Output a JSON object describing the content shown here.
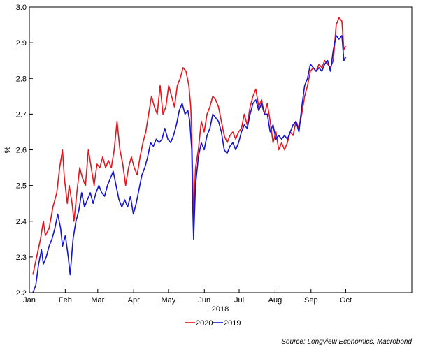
{
  "chart_data": {
    "type": "line",
    "xlabel": "2018",
    "ylabel": "%",
    "ylim": [
      2.2,
      3.0
    ],
    "yticks": [
      "2.2",
      "2.3",
      "2.4",
      "2.5",
      "2.6",
      "2.7",
      "2.8",
      "2.9",
      "3.0"
    ],
    "xticks": [
      "Jan",
      "Feb",
      "Mar",
      "Apr",
      "May",
      "Jun",
      "Jul",
      "Aug",
      "Sep",
      "Oct"
    ],
    "grid": false,
    "legend_position": "bottom-center",
    "source": "Source: Longview Economics, Macrobond",
    "colors": {
      "2020": "#e8141c",
      "2019": "#1414d6"
    },
    "series": [
      {
        "name": "2020",
        "points": [
          [
            0,
            2.25
          ],
          [
            4,
            2.3
          ],
          [
            8,
            2.35
          ],
          [
            11,
            2.4
          ],
          [
            13,
            2.36
          ],
          [
            17,
            2.38
          ],
          [
            21,
            2.44
          ],
          [
            25,
            2.48
          ],
          [
            28,
            2.55
          ],
          [
            31,
            2.6
          ],
          [
            33,
            2.52
          ],
          [
            36,
            2.45
          ],
          [
            38,
            2.5
          ],
          [
            41,
            2.45
          ],
          [
            43,
            2.4
          ],
          [
            46,
            2.48
          ],
          [
            49,
            2.55
          ],
          [
            52,
            2.52
          ],
          [
            55,
            2.5
          ],
          [
            58,
            2.6
          ],
          [
            61,
            2.55
          ],
          [
            64,
            2.5
          ],
          [
            67,
            2.56
          ],
          [
            70,
            2.55
          ],
          [
            73,
            2.58
          ],
          [
            76,
            2.55
          ],
          [
            79,
            2.57
          ],
          [
            82,
            2.55
          ],
          [
            85,
            2.6
          ],
          [
            88,
            2.68
          ],
          [
            91,
            2.6
          ],
          [
            94,
            2.56
          ],
          [
            97,
            2.5
          ],
          [
            100,
            2.55
          ],
          [
            103,
            2.58
          ],
          [
            106,
            2.55
          ],
          [
            109,
            2.53
          ],
          [
            112,
            2.58
          ],
          [
            115,
            2.62
          ],
          [
            118,
            2.65
          ],
          [
            121,
            2.7
          ],
          [
            124,
            2.75
          ],
          [
            127,
            2.72
          ],
          [
            130,
            2.7
          ],
          [
            133,
            2.78
          ],
          [
            136,
            2.7
          ],
          [
            139,
            2.72
          ],
          [
            142,
            2.78
          ],
          [
            145,
            2.75
          ],
          [
            148,
            2.72
          ],
          [
            151,
            2.78
          ],
          [
            154,
            2.8
          ],
          [
            157,
            2.83
          ],
          [
            160,
            2.82
          ],
          [
            163,
            2.78
          ],
          [
            165,
            2.72
          ],
          [
            166,
            2.65
          ],
          [
            168,
            2.4
          ],
          [
            170,
            2.55
          ],
          [
            173,
            2.6
          ],
          [
            176,
            2.68
          ],
          [
            179,
            2.65
          ],
          [
            182,
            2.7
          ],
          [
            185,
            2.72
          ],
          [
            188,
            2.75
          ],
          [
            191,
            2.74
          ],
          [
            194,
            2.72
          ],
          [
            197,
            2.68
          ],
          [
            200,
            2.64
          ],
          [
            203,
            2.62
          ],
          [
            206,
            2.64
          ],
          [
            209,
            2.65
          ],
          [
            212,
            2.63
          ],
          [
            215,
            2.65
          ],
          [
            218,
            2.66
          ],
          [
            221,
            2.7
          ],
          [
            224,
            2.67
          ],
          [
            227,
            2.72
          ],
          [
            230,
            2.75
          ],
          [
            233,
            2.77
          ],
          [
            236,
            2.72
          ],
          [
            239,
            2.74
          ],
          [
            242,
            2.7
          ],
          [
            245,
            2.73
          ],
          [
            248,
            2.68
          ],
          [
            251,
            2.62
          ],
          [
            254,
            2.65
          ],
          [
            257,
            2.6
          ],
          [
            260,
            2.62
          ],
          [
            263,
            2.6
          ],
          [
            266,
            2.62
          ],
          [
            269,
            2.65
          ],
          [
            272,
            2.64
          ],
          [
            275,
            2.68
          ],
          [
            278,
            2.66
          ],
          [
            281,
            2.7
          ],
          [
            284,
            2.75
          ],
          [
            287,
            2.78
          ],
          [
            290,
            2.82
          ],
          [
            293,
            2.83
          ],
          [
            296,
            2.82
          ],
          [
            299,
            2.84
          ],
          [
            302,
            2.83
          ],
          [
            305,
            2.85
          ],
          [
            308,
            2.84
          ],
          [
            311,
            2.83
          ],
          [
            314,
            2.85
          ],
          [
            317,
            2.95
          ],
          [
            320,
            2.97
          ],
          [
            323,
            2.96
          ],
          [
            325,
            2.88
          ],
          [
            327,
            2.89
          ]
        ]
      },
      {
        "name": "2019",
        "points": [
          [
            0,
            2.2
          ],
          [
            3,
            2.22
          ],
          [
            6,
            2.28
          ],
          [
            9,
            2.32
          ],
          [
            11,
            2.28
          ],
          [
            14,
            2.3
          ],
          [
            17,
            2.33
          ],
          [
            20,
            2.35
          ],
          [
            23,
            2.38
          ],
          [
            26,
            2.42
          ],
          [
            29,
            2.38
          ],
          [
            31,
            2.33
          ],
          [
            34,
            2.36
          ],
          [
            37,
            2.3
          ],
          [
            39,
            2.25
          ],
          [
            42,
            2.35
          ],
          [
            45,
            2.4
          ],
          [
            48,
            2.43
          ],
          [
            51,
            2.48
          ],
          [
            54,
            2.44
          ],
          [
            57,
            2.46
          ],
          [
            60,
            2.48
          ],
          [
            63,
            2.45
          ],
          [
            66,
            2.48
          ],
          [
            69,
            2.5
          ],
          [
            72,
            2.48
          ],
          [
            75,
            2.47
          ],
          [
            78,
            2.5
          ],
          [
            81,
            2.52
          ],
          [
            84,
            2.54
          ],
          [
            87,
            2.5
          ],
          [
            90,
            2.46
          ],
          [
            93,
            2.44
          ],
          [
            96,
            2.46
          ],
          [
            99,
            2.44
          ],
          [
            102,
            2.47
          ],
          [
            105,
            2.42
          ],
          [
            108,
            2.45
          ],
          [
            111,
            2.49
          ],
          [
            114,
            2.53
          ],
          [
            117,
            2.55
          ],
          [
            120,
            2.58
          ],
          [
            123,
            2.62
          ],
          [
            126,
            2.61
          ],
          [
            129,
            2.63
          ],
          [
            132,
            2.62
          ],
          [
            135,
            2.63
          ],
          [
            138,
            2.66
          ],
          [
            141,
            2.63
          ],
          [
            144,
            2.62
          ],
          [
            147,
            2.64
          ],
          [
            150,
            2.67
          ],
          [
            153,
            2.71
          ],
          [
            156,
            2.73
          ],
          [
            159,
            2.7
          ],
          [
            162,
            2.71
          ],
          [
            164,
            2.68
          ],
          [
            166,
            2.6
          ],
          [
            167,
            2.45
          ],
          [
            168,
            2.35
          ],
          [
            170,
            2.5
          ],
          [
            173,
            2.58
          ],
          [
            176,
            2.62
          ],
          [
            179,
            2.6
          ],
          [
            182,
            2.64
          ],
          [
            185,
            2.66
          ],
          [
            188,
            2.7
          ],
          [
            191,
            2.69
          ],
          [
            194,
            2.68
          ],
          [
            197,
            2.65
          ],
          [
            200,
            2.6
          ],
          [
            203,
            2.59
          ],
          [
            206,
            2.61
          ],
          [
            209,
            2.62
          ],
          [
            212,
            2.6
          ],
          [
            215,
            2.62
          ],
          [
            218,
            2.65
          ],
          [
            221,
            2.67
          ],
          [
            224,
            2.66
          ],
          [
            227,
            2.7
          ],
          [
            230,
            2.73
          ],
          [
            233,
            2.74
          ],
          [
            236,
            2.71
          ],
          [
            239,
            2.73
          ],
          [
            242,
            2.7
          ],
          [
            245,
            2.7
          ],
          [
            248,
            2.65
          ],
          [
            251,
            2.67
          ],
          [
            254,
            2.63
          ],
          [
            257,
            2.64
          ],
          [
            260,
            2.63
          ],
          [
            263,
            2.64
          ],
          [
            266,
            2.63
          ],
          [
            269,
            2.65
          ],
          [
            272,
            2.67
          ],
          [
            275,
            2.68
          ],
          [
            278,
            2.65
          ],
          [
            281,
            2.72
          ],
          [
            284,
            2.78
          ],
          [
            287,
            2.8
          ],
          [
            290,
            2.84
          ],
          [
            293,
            2.83
          ],
          [
            296,
            2.82
          ],
          [
            299,
            2.83
          ],
          [
            302,
            2.82
          ],
          [
            305,
            2.84
          ],
          [
            308,
            2.85
          ],
          [
            311,
            2.82
          ],
          [
            314,
            2.88
          ],
          [
            317,
            2.92
          ],
          [
            320,
            2.91
          ],
          [
            323,
            2.92
          ],
          [
            325,
            2.85
          ],
          [
            327,
            2.86
          ]
        ]
      }
    ]
  }
}
